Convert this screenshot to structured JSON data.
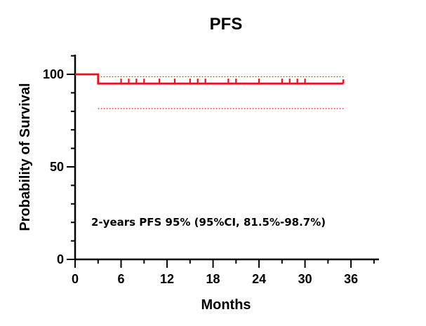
{
  "chart_data": {
    "type": "line",
    "title": "PFS",
    "xlabel": "Months",
    "ylabel": "Probability of Survival",
    "xlim": [
      0,
      40
    ],
    "ylim": [
      0,
      110
    ],
    "x_ticks": [
      0,
      6,
      12,
      18,
      24,
      30,
      36
    ],
    "y_ticks": [
      0,
      50,
      100
    ],
    "series": [
      {
        "name": "PFS",
        "color": "#e8141b",
        "steps": [
          {
            "x": 0,
            "y": 100
          },
          {
            "x": 3,
            "y": 100
          },
          {
            "x": 3,
            "y": 95
          },
          {
            "x": 35,
            "y": 95
          }
        ],
        "censored_x": [
          6,
          7,
          8,
          9,
          11,
          13,
          15,
          16,
          17,
          20,
          21,
          24,
          27,
          28,
          29,
          30
        ]
      }
    ],
    "ci_band": {
      "x_start": 3,
      "x_end": 35,
      "upper": 98.7,
      "lower": 81.5,
      "color": "#e8141b"
    },
    "annotation": "2-years PFS 95%  (95%CI, 81.5%-98.7%)"
  }
}
